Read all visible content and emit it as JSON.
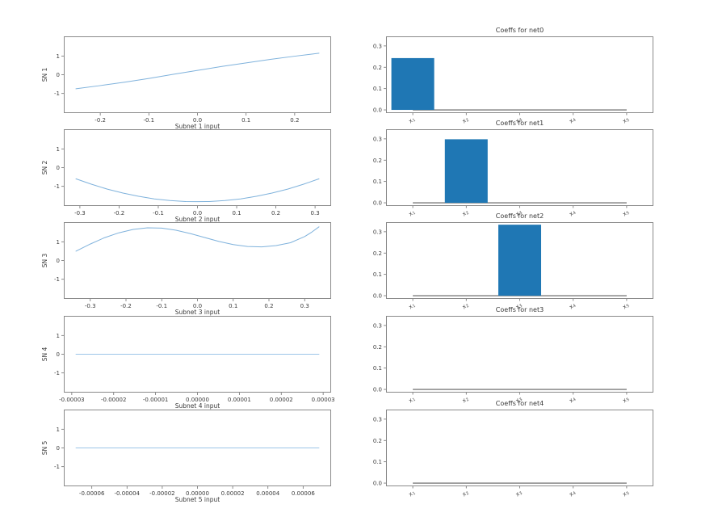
{
  "chart_data": {
    "type": "multi-panel",
    "description": "Matplotlib-style figure: left column shows 5 subnet shape functions (line plots), right column shows 5 coefficient bar charts",
    "colors": {
      "background": "#ffffff",
      "line": "#7fb2dc",
      "flat_line": "#9cc5e8",
      "bar": "#1f77b4",
      "spine": "#8a8a8a",
      "tick": "#6f6f6f",
      "text": "#3a3a3a",
      "zero_line": "#5f5f5f"
    },
    "left_column": [
      {
        "type": "line",
        "ylabel": "SN 1",
        "xlabel": "Subnet 1 input",
        "xlim": [
          -0.275,
          0.275
        ],
        "ylim": [
          -2.05,
          2.05
        ],
        "xticks": [
          -0.2,
          -0.1,
          0.0,
          0.1,
          0.2
        ],
        "xtick_labels": [
          "-0.2",
          "-0.1",
          "0.0",
          "0.1",
          "0.2"
        ],
        "yticks": [
          -1,
          0,
          1
        ],
        "ytick_labels": [
          "-1",
          "0",
          "1"
        ],
        "x": [
          -0.25,
          -0.2,
          -0.15,
          -0.1,
          -0.05,
          0,
          0.05,
          0.1,
          0.15,
          0.2,
          0.25
        ],
        "y": [
          -0.75,
          -0.58,
          -0.4,
          -0.2,
          0.02,
          0.23,
          0.44,
          0.63,
          0.82,
          0.99,
          1.15
        ],
        "line_color": "#7fb2dc"
      },
      {
        "type": "line",
        "ylabel": "SN 2",
        "xlabel": "Subnet 2 input",
        "xlim": [
          -0.341,
          0.341
        ],
        "ylim": [
          -2.05,
          2.05
        ],
        "xticks": [
          -0.3,
          -0.2,
          -0.1,
          0.0,
          0.1,
          0.2,
          0.3
        ],
        "xtick_labels": [
          "-0.3",
          "-0.2",
          "-0.1",
          "0.0",
          "0.1",
          "0.2",
          "0.3"
        ],
        "yticks": [
          -1,
          0,
          1
        ],
        "ytick_labels": [
          "-1",
          "0",
          "1"
        ],
        "x": [
          -0.31,
          -0.27,
          -0.23,
          -0.19,
          -0.15,
          -0.11,
          -0.07,
          -0.03,
          0,
          0.03,
          0.07,
          0.11,
          0.15,
          0.19,
          0.23,
          0.27,
          0.31
        ],
        "y": [
          -0.6,
          -0.89,
          -1.15,
          -1.36,
          -1.53,
          -1.67,
          -1.76,
          -1.81,
          -1.82,
          -1.81,
          -1.76,
          -1.67,
          -1.53,
          -1.36,
          -1.15,
          -0.89,
          -0.6
        ],
        "line_color": "#7fb2dc"
      },
      {
        "type": "line",
        "ylabel": "SN 3",
        "xlabel": "Subnet 3 input",
        "xlim": [
          -0.374,
          0.374
        ],
        "ylim": [
          -2.05,
          2.05
        ],
        "xticks": [
          -0.3,
          -0.2,
          -0.1,
          0.0,
          0.1,
          0.2,
          0.3
        ],
        "xtick_labels": [
          "-0.3",
          "-0.2",
          "-0.1",
          "0.0",
          "0.1",
          "0.2",
          "0.3"
        ],
        "yticks": [
          -1,
          0,
          1
        ],
        "ytick_labels": [
          "-1",
          "0",
          "1"
        ],
        "x": [
          -0.34,
          -0.3,
          -0.26,
          -0.22,
          -0.18,
          -0.14,
          -0.1,
          -0.06,
          -0.02,
          0.02,
          0.06,
          0.1,
          0.14,
          0.18,
          0.22,
          0.26,
          0.3,
          0.32,
          0.34
        ],
        "y": [
          0.5,
          0.88,
          1.22,
          1.48,
          1.66,
          1.75,
          1.73,
          1.62,
          1.44,
          1.23,
          1.02,
          0.85,
          0.75,
          0.73,
          0.8,
          0.95,
          1.28,
          1.52,
          1.8
        ],
        "line_color": "#7fb2dc"
      },
      {
        "type": "line",
        "ylabel": "SN 4",
        "xlabel": "Subnet 4 input",
        "xlim": [
          -3.19e-05,
          3.19e-05
        ],
        "ylim": [
          -2.05,
          2.05
        ],
        "xticks": [
          -3e-05,
          -2e-05,
          -1e-05,
          0.0,
          1e-05,
          2e-05,
          3e-05
        ],
        "xtick_labels": [
          "-0.00003",
          "-0.00002",
          "-0.00001",
          "0.00000",
          "0.00001",
          "0.00002",
          "0.00003"
        ],
        "yticks": [
          -1,
          0,
          1
        ],
        "ytick_labels": [
          "-1",
          "0",
          "1"
        ],
        "x": [
          -2.9e-05,
          0,
          2.9e-05
        ],
        "y": [
          0,
          0,
          0
        ],
        "line_color": "#9cc5e8"
      },
      {
        "type": "line",
        "ylabel": "SN 5",
        "xlabel": "Subnet 5 input",
        "xlim": [
          -7.59e-05,
          7.59e-05
        ],
        "ylim": [
          -2.05,
          2.05
        ],
        "xticks": [
          -6e-05,
          -4e-05,
          -2e-05,
          0.0,
          2e-05,
          4e-05,
          6e-05
        ],
        "xtick_labels": [
          "-0.00006",
          "-0.00004",
          "-0.00002",
          "0.00000",
          "0.00002",
          "0.00004",
          "0.00006"
        ],
        "yticks": [
          -1,
          0,
          1
        ],
        "ytick_labels": [
          "-1",
          "0",
          "1"
        ],
        "x": [
          -6.9e-05,
          0,
          6.9e-05
        ],
        "y": [
          0,
          0,
          0
        ],
        "line_color": "#9cc5e8"
      }
    ],
    "right_column": [
      {
        "type": "bar",
        "title": "Coeffs for net0",
        "categories": [
          "x_1",
          "x_2",
          "x_3",
          "x_4",
          "x_5"
        ],
        "values": [
          0.243,
          0,
          0,
          0,
          0
        ],
        "ylim": [
          -0.015,
          0.345
        ],
        "yticks": [
          0.0,
          0.1,
          0.2,
          0.3
        ],
        "ytick_labels": [
          "0.0",
          "0.1",
          "0.2",
          "0.3"
        ],
        "zero_line": true
      },
      {
        "type": "bar",
        "title": "Coeffs for net1",
        "categories": [
          "x_1",
          "x_2",
          "x_3",
          "x_4",
          "x_5"
        ],
        "values": [
          0,
          0.298,
          0,
          0,
          0
        ],
        "ylim": [
          -0.015,
          0.345
        ],
        "yticks": [
          0.0,
          0.1,
          0.2,
          0.3
        ],
        "ytick_labels": [
          "0.0",
          "0.1",
          "0.2",
          "0.3"
        ],
        "zero_line": true
      },
      {
        "type": "bar",
        "title": "Coeffs for net2",
        "categories": [
          "x_1",
          "x_2",
          "x_3",
          "x_4",
          "x_5"
        ],
        "values": [
          0,
          0,
          0.333,
          0,
          0
        ],
        "ylim": [
          -0.015,
          0.345
        ],
        "yticks": [
          0.0,
          0.1,
          0.2,
          0.3
        ],
        "ytick_labels": [
          "0.0",
          "0.1",
          "0.2",
          "0.3"
        ],
        "zero_line": true
      },
      {
        "type": "bar",
        "title": "Coeffs for net3",
        "categories": [
          "x_1",
          "x_2",
          "x_3",
          "x_4",
          "x_5"
        ],
        "values": [
          0,
          0,
          0,
          0,
          0
        ],
        "ylim": [
          -0.015,
          0.345
        ],
        "yticks": [
          0.0,
          0.1,
          0.2,
          0.3
        ],
        "ytick_labels": [
          "0.0",
          "0.1",
          "0.2",
          "0.3"
        ],
        "zero_line": true
      },
      {
        "type": "bar",
        "title": "Coeffs for net4",
        "categories": [
          "x_1",
          "x_2",
          "x_3",
          "x_4",
          "x_5"
        ],
        "values": [
          0,
          0,
          0,
          0,
          0
        ],
        "ylim": [
          -0.015,
          0.345
        ],
        "yticks": [
          0.0,
          0.1,
          0.2,
          0.3
        ],
        "ytick_labels": [
          "0.0",
          "0.1",
          "0.2",
          "0.3"
        ],
        "zero_line": true
      }
    ]
  }
}
